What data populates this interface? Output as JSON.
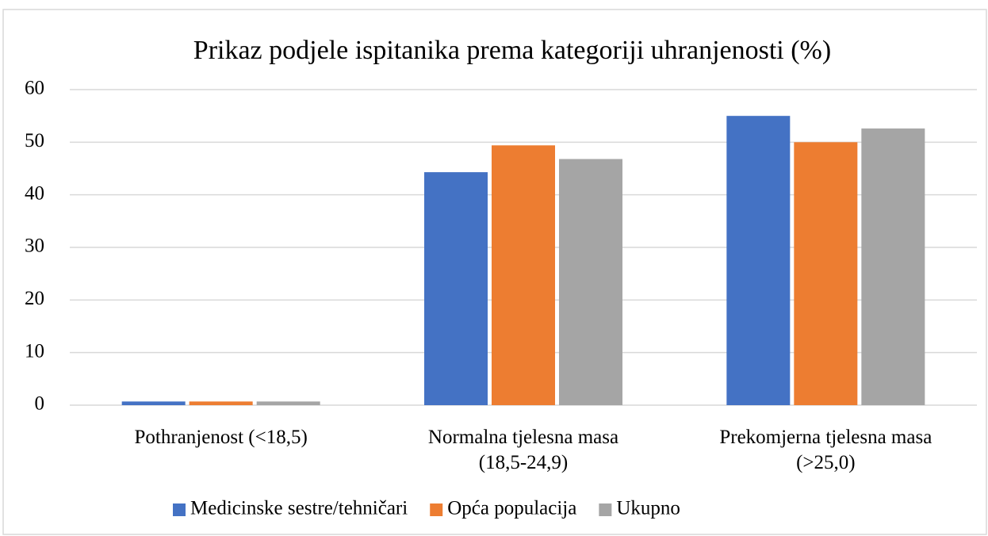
{
  "chart_data": {
    "type": "bar",
    "title": "Prikaz podjele ispitanika prema kategoriji uhranjenosti (%)",
    "categories": [
      "Pothranjenost (<18,5)",
      "Normalna tjelesna masa\n(18,5-24,9)",
      "Prekomjerna tjelesna masa\n(>25,0)"
    ],
    "series": [
      {
        "name": "Medicinske sestre/tehničari",
        "color": "#4472c4",
        "values": [
          0.7,
          44.3,
          55.0
        ]
      },
      {
        "name": "Opća populacija",
        "color": "#ed7d31",
        "values": [
          0.7,
          49.4,
          50.0
        ]
      },
      {
        "name": "Ukupno",
        "color": "#a5a5a5",
        "values": [
          0.7,
          46.8,
          52.6
        ]
      }
    ],
    "ylim": [
      0,
      60
    ],
    "yticks": [
      0,
      10,
      20,
      30,
      40,
      50,
      60
    ],
    "grid": true,
    "legend": "bottom"
  }
}
